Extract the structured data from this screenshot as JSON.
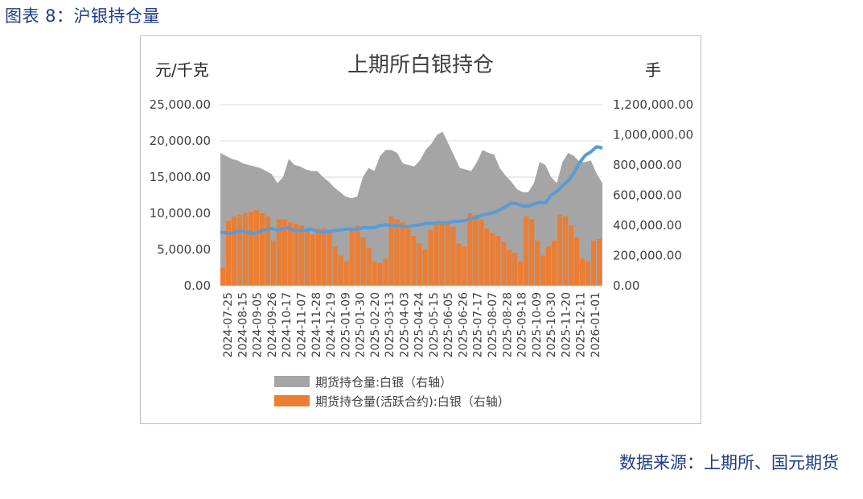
{
  "figure_caption": "图表 8：沪银持仓量",
  "source_note": "数据来源：上期所、国元期货",
  "chart_data": {
    "type": "area",
    "title": "上期所白银持仓",
    "left_unit_label": "元/千克",
    "right_unit_label": "手",
    "left_axis": {
      "ylim": [
        0,
        25000
      ],
      "ticks": [
        "0.00",
        "5,000.00",
        "10,000.00",
        "15,000.00",
        "20,000.00",
        "25,000.00"
      ]
    },
    "right_axis": {
      "ylim": [
        0,
        1200000
      ],
      "ticks": [
        "0.00",
        "200,000.00",
        "400,000.00",
        "600,000.00",
        "800,000.00",
        "1,000,000.00",
        "1,200,000.00"
      ]
    },
    "grid": "horizontal",
    "x_tick_labels": [
      "2024-07-25",
      "2024-08-15",
      "2024-09-05",
      "2024-09-26",
      "2024-10-17",
      "2024-11-07",
      "2024-11-28",
      "2024-12-19",
      "2025-01-09",
      "2025-01-30",
      "2025-02-20",
      "2025-03-13",
      "2025-04-03",
      "2025-04-24",
      "2025-05-15",
      "2025-06-05",
      "2025-06-26",
      "2025-07-17",
      "2025-08-07",
      "2025-08-28",
      "2025-09-18",
      "2025-10-09",
      "2025-10-30",
      "2025-11-20",
      "2025-12-11",
      "2026-01-01"
    ],
    "legend_position": "bottom",
    "legend": [
      "期货持仓量:白银（右轴）",
      "期货持仓量(活跃合约):白银（右轴）"
    ],
    "colors": {
      "total": "#a5a5a5",
      "active": "#ed7d31",
      "price": "#5b9bd5"
    },
    "total_oi_right": [
      880000,
      860000,
      840000,
      830000,
      810000,
      800000,
      790000,
      780000,
      760000,
      740000,
      680000,
      720000,
      840000,
      800000,
      790000,
      770000,
      760000,
      760000,
      720000,
      690000,
      650000,
      620000,
      590000,
      580000,
      590000,
      720000,
      780000,
      760000,
      860000,
      900000,
      900000,
      880000,
      810000,
      800000,
      790000,
      830000,
      900000,
      940000,
      1000000,
      1020000,
      940000,
      860000,
      780000,
      770000,
      760000,
      820000,
      900000,
      880000,
      870000,
      780000,
      730000,
      690000,
      640000,
      620000,
      620000,
      680000,
      820000,
      800000,
      720000,
      680000,
      820000,
      880000,
      860000,
      820000,
      820000,
      830000,
      740000,
      680000
    ],
    "active_oi_right": [
      120000,
      430000,
      460000,
      470000,
      480000,
      490000,
      500000,
      480000,
      460000,
      300000,
      440000,
      440000,
      420000,
      410000,
      400000,
      380000,
      340000,
      380000,
      380000,
      370000,
      260000,
      200000,
      160000,
      380000,
      400000,
      320000,
      250000,
      160000,
      150000,
      180000,
      460000,
      440000,
      420000,
      380000,
      330000,
      280000,
      240000,
      370000,
      420000,
      410000,
      420000,
      390000,
      280000,
      260000,
      480000,
      470000,
      440000,
      380000,
      350000,
      330000,
      290000,
      240000,
      220000,
      160000,
      460000,
      440000,
      300000,
      200000,
      260000,
      300000,
      470000,
      460000,
      400000,
      320000,
      180000,
      160000,
      300000,
      310000
    ],
    "price_left": [
      7400,
      7300,
      7250,
      7500,
      7500,
      7300,
      7200,
      7500,
      7800,
      7900,
      7700,
      7900,
      8000,
      7600,
      7600,
      7700,
      7800,
      7500,
      7400,
      7500,
      7600,
      7700,
      7800,
      7800,
      7800,
      8000,
      8000,
      8000,
      8300,
      8400,
      8300,
      8300,
      8200,
      8200,
      8300,
      8400,
      8600,
      8600,
      8700,
      8700,
      8700,
      8900,
      8900,
      9000,
      9300,
      9400,
      9800,
      9900,
      10100,
      10500,
      10900,
      11400,
      11300,
      11000,
      11000,
      11300,
      11500,
      11400,
      12500,
      13000,
      13800,
      14500,
      15500,
      17000,
      18000,
      18500,
      19200,
      19000
    ]
  }
}
